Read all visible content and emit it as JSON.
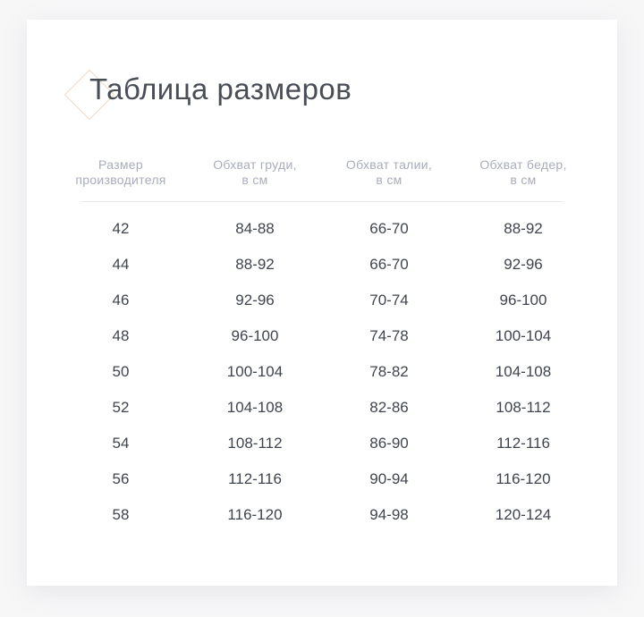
{
  "page": {
    "title": "Таблица размеров"
  },
  "icons": {
    "title_decoration": "diamond-outline"
  },
  "colors": {
    "background": "#f7f7f8",
    "card": "#ffffff",
    "title_text": "#484d56",
    "header_text": "#a9adbb",
    "cell_text": "#3f444e",
    "diamond_border": "#f2d7c5",
    "separator": "#e7e8ef"
  },
  "chart_data": {
    "type": "table",
    "title": "Таблица размеров",
    "headers": [
      {
        "lines": [
          "Размер",
          "производителя"
        ]
      },
      {
        "lines": [
          "Обхват груди,",
          "в см"
        ]
      },
      {
        "lines": [
          "Обхват талии,",
          "в см"
        ]
      },
      {
        "lines": [
          "Обхват бедер,",
          "в см"
        ]
      }
    ],
    "rows": [
      [
        "42",
        "84-88",
        "66-70",
        "88-92"
      ],
      [
        "44",
        "88-92",
        "66-70",
        "92-96"
      ],
      [
        "46",
        "92-96",
        "70-74",
        "96-100"
      ],
      [
        "48",
        "96-100",
        "74-78",
        "100-104"
      ],
      [
        "50",
        "100-104",
        "78-82",
        "104-108"
      ],
      [
        "52",
        "104-108",
        "82-86",
        "108-112"
      ],
      [
        "54",
        "108-112",
        "86-90",
        "112-116"
      ],
      [
        "56",
        "112-116",
        "90-94",
        "116-120"
      ],
      [
        "58",
        "116-120",
        "94-98",
        "120-124"
      ]
    ]
  }
}
